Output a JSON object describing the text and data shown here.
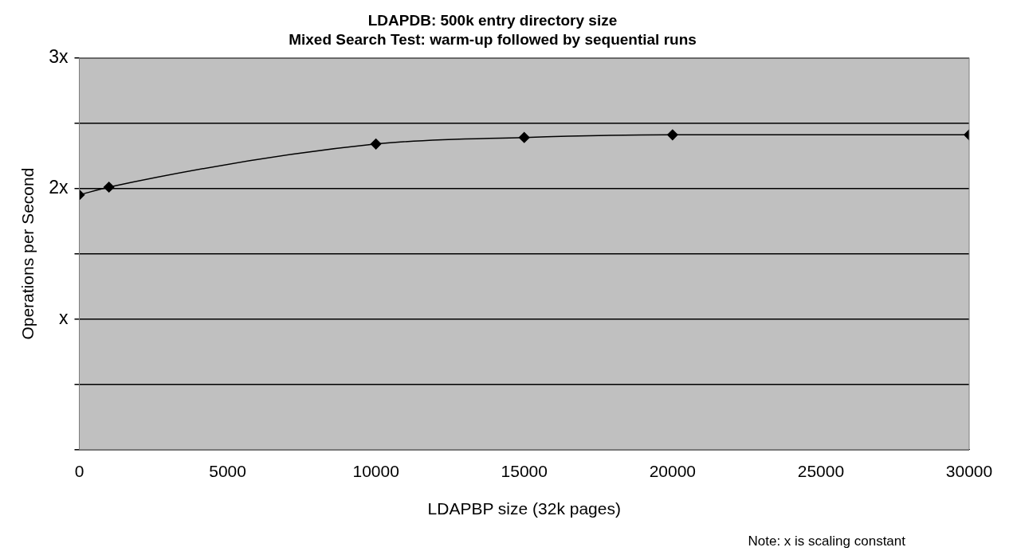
{
  "chart_data": {
    "type": "line",
    "title": "LDAPDB: 500k entry directory size",
    "subtitle": "Mixed Search Test: warm-up followed by sequential runs",
    "xlabel": "LDAPBP size (32k pages)",
    "ylabel": "Operations per Second",
    "x": [
      0,
      1000,
      10000,
      15000,
      20000,
      30000
    ],
    "series": [
      {
        "color": "#000000",
        "values": [
          1.95,
          2.01,
          2.34,
          2.39,
          2.41,
          2.41
        ]
      }
    ],
    "xlim": [
      0,
      30000
    ],
    "xticks": [
      0,
      5000,
      10000,
      15000,
      20000,
      25000,
      30000
    ],
    "ylim": [
      0,
      3
    ],
    "yticks": [
      {
        "value": 0,
        "label": null
      },
      {
        "value": 0.5,
        "label": null
      },
      {
        "value": 1,
        "label": "x"
      },
      {
        "value": 1.5,
        "label": null
      },
      {
        "value": 2,
        "label": "2x"
      },
      {
        "value": 2.5,
        "label": null
      },
      {
        "value": 3,
        "label": "3x"
      }
    ],
    "grid": "y",
    "legend": false,
    "marker": "diamond",
    "line_style": "solid",
    "annotations": [
      "Note: x is scaling constant"
    ]
  }
}
